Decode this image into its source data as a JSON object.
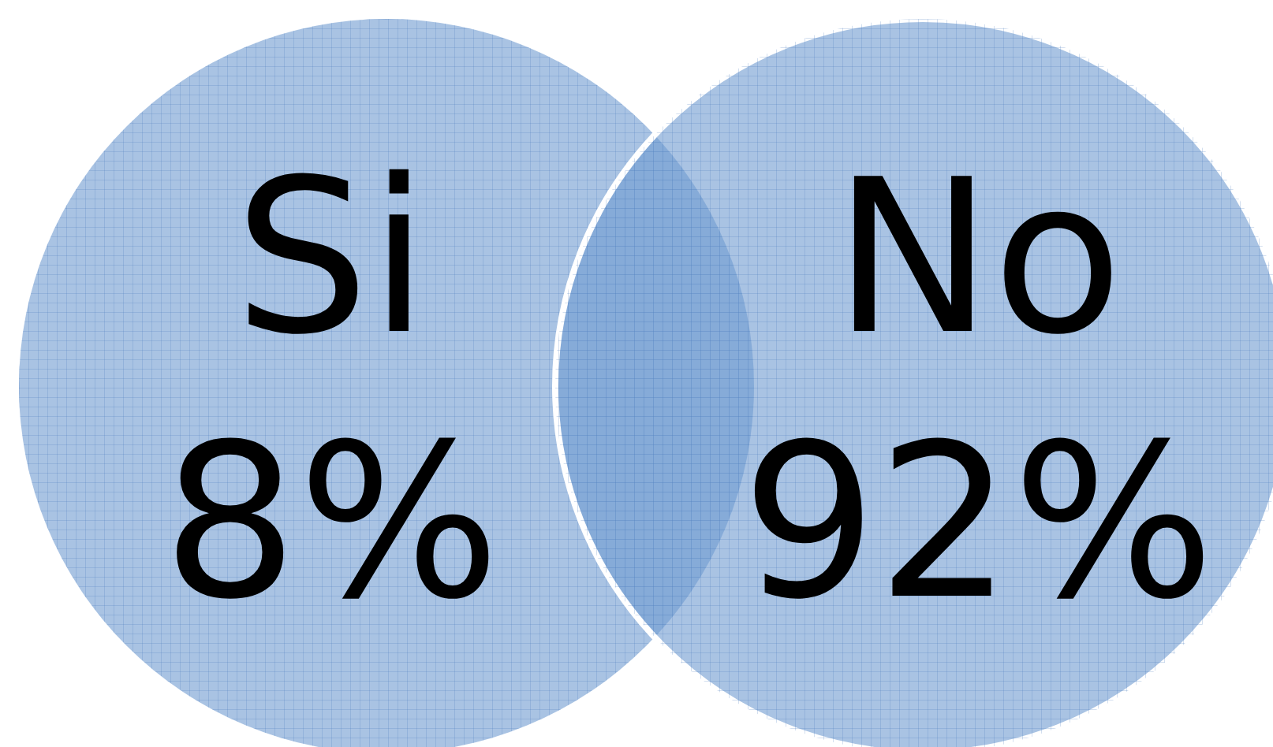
{
  "chart_data": {
    "type": "other",
    "categories": [
      "Si",
      "No"
    ],
    "values": [
      8,
      92
    ],
    "value_labels": [
      "8%",
      "92%"
    ],
    "colors": [
      "#6f9bd1",
      "#6f9bd1"
    ]
  }
}
